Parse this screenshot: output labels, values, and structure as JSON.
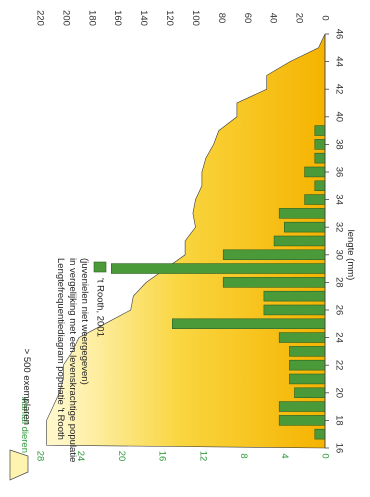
{
  "chart_data": {
    "type": "bar",
    "orientation": "rotated-90",
    "title_lines": [
      "Lengtefrequentiediagram populatie 't Rooth",
      "in vergelijking met een levenskrachtige populatie",
      "(juvenielen niet weergegeven)"
    ],
    "xlabel": "lengte (mm)",
    "ylabel": "Aantal dieren",
    "x_ticks": [
      "16",
      "18",
      "20",
      "22",
      "24",
      "26",
      "28",
      "30",
      "32",
      "34",
      "36",
      "38",
      "40",
      "42",
      "44",
      "46"
    ],
    "xlim": [
      16,
      46
    ],
    "y_left_ticks": [
      "0",
      "4",
      "8",
      "12",
      "16",
      "20",
      "24",
      "28"
    ],
    "ylim_left": [
      0,
      28
    ],
    "y_right_ticks": [
      "0",
      "20",
      "40",
      "60",
      "80",
      "100",
      "120",
      "140",
      "160",
      "180",
      "200",
      "220"
    ],
    "ylim_right": [
      0,
      220
    ],
    "reference": {
      "name": "> 500 exemplaren",
      "color": "#f5b800",
      "x": [
        16,
        16.2,
        17,
        18,
        19,
        20,
        21,
        22,
        23,
        24,
        25,
        26,
        27,
        28,
        29,
        30,
        31,
        32,
        33,
        34,
        35,
        36,
        37,
        38,
        39,
        40,
        41,
        42,
        43,
        44,
        45,
        46
      ],
      "values": [
        0,
        215,
        215,
        215,
        210,
        205,
        202,
        202,
        195,
        190,
        170,
        150,
        148,
        138,
        123,
        108,
        108,
        100,
        102,
        100,
        95,
        95,
        92,
        86,
        82,
        68,
        68,
        45,
        45,
        27,
        5,
        0
      ]
    },
    "series": [
      {
        "name": "'t Rooth, 2001",
        "color": "#4a9a3a",
        "x": [
          17,
          18,
          19,
          20,
          21,
          22,
          23,
          24,
          25,
          26,
          27,
          28,
          29,
          30,
          31,
          32,
          33,
          34,
          35,
          36,
          37,
          38,
          39
        ],
        "values": [
          1,
          4.5,
          4.5,
          3,
          3.5,
          3.5,
          3.5,
          4.5,
          15,
          6,
          6,
          10,
          21,
          10,
          5,
          4,
          4.5,
          2,
          1,
          2,
          1,
          1,
          1
        ]
      }
    ]
  }
}
